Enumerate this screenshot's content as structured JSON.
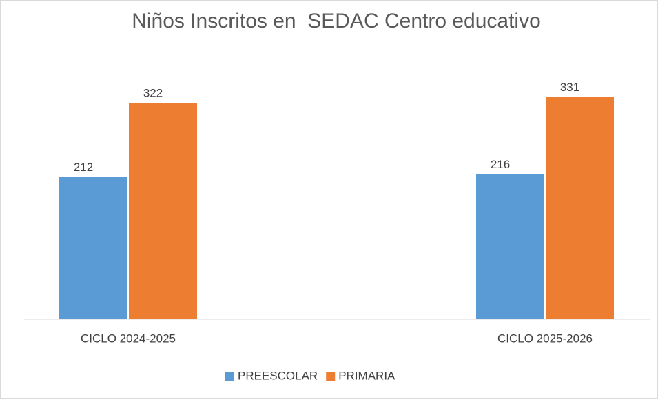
{
  "chart_data": {
    "type": "bar",
    "title": "Niños Inscritos en  SEDAC Centro educativo",
    "categories": [
      "CICLO 2024-2025",
      "CICLO 2025-2026"
    ],
    "series": [
      {
        "name": "PREESCOLAR",
        "color": "#5b9bd5",
        "values": [
          212,
          216
        ]
      },
      {
        "name": "PRIMARIA",
        "color": "#ed7d31",
        "values": [
          322,
          331
        ]
      }
    ],
    "ylim": [
      0,
      350
    ],
    "legend": "bottom"
  }
}
